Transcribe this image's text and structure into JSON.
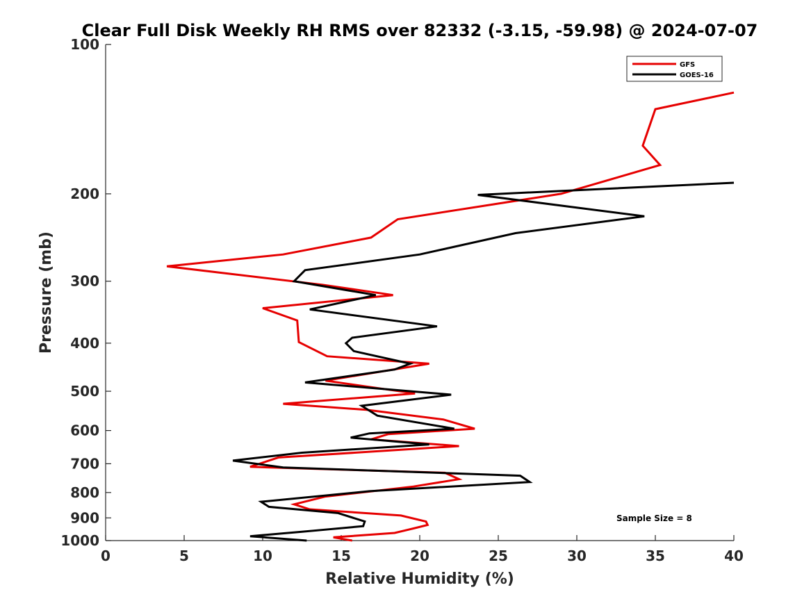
{
  "chart_data": {
    "type": "line",
    "title": "Clear Full Disk Weekly RH RMS over 82332 (-3.15, -59.98) @ 2024-07-07",
    "xlabel": "Relative Humidity (%)",
    "ylabel": "Pressure (mb)",
    "xlim": [
      0,
      40
    ],
    "ylim": [
      100,
      1000
    ],
    "yscale": "log",
    "y_reversed": true,
    "x_ticks": [
      "0",
      "5",
      "10",
      "15",
      "20",
      "25",
      "30",
      "35",
      "40"
    ],
    "y_ticks": [
      "100",
      "200",
      "300",
      "400",
      "500",
      "600",
      "700",
      "800",
      "900",
      "1000"
    ],
    "grid": false,
    "legend_position": "top-right",
    "annotation": "Sample Size = 8",
    "series": [
      {
        "name": "GFS",
        "color": "#e60000",
        "points": [
          [
            40.0,
            125
          ],
          [
            35.0,
            135
          ],
          [
            34.2,
            160
          ],
          [
            35.3,
            175
          ],
          [
            29.0,
            200
          ],
          [
            18.6,
            225
          ],
          [
            16.9,
            245
          ],
          [
            11.3,
            265
          ],
          [
            3.9,
            280
          ],
          [
            13.8,
            305
          ],
          [
            18.3,
            320
          ],
          [
            10.0,
            340
          ],
          [
            12.2,
            360
          ],
          [
            12.3,
            398
          ],
          [
            14.1,
            425
          ],
          [
            20.6,
            440
          ],
          [
            14.0,
            476
          ],
          [
            19.7,
            505
          ],
          [
            11.3,
            530
          ],
          [
            16.6,
            545
          ],
          [
            21.5,
            570
          ],
          [
            23.5,
            595
          ],
          [
            18.0,
            610
          ],
          [
            16.9,
            625
          ],
          [
            22.5,
            645
          ],
          [
            11.0,
            680
          ],
          [
            9.2,
            710
          ],
          [
            21.6,
            730
          ],
          [
            22.5,
            752
          ],
          [
            19.6,
            778
          ],
          [
            14.0,
            815
          ],
          [
            12.0,
            845
          ],
          [
            13.0,
            865
          ],
          [
            18.8,
            890
          ],
          [
            20.4,
            915
          ],
          [
            20.5,
            930
          ],
          [
            19.6,
            945
          ],
          [
            18.4,
            965
          ],
          [
            14.5,
            985
          ],
          [
            15.7,
            1000
          ]
        ]
      },
      {
        "name": "GOES-16",
        "color": "#000000",
        "points": [
          [
            40.0,
            190
          ],
          [
            23.7,
            201
          ],
          [
            34.3,
            222
          ],
          [
            26.1,
            240
          ],
          [
            20.0,
            265
          ],
          [
            12.7,
            285
          ],
          [
            12.0,
            300
          ],
          [
            17.2,
            320
          ],
          [
            13.0,
            342
          ],
          [
            21.1,
            370
          ],
          [
            15.7,
            390
          ],
          [
            15.3,
            400
          ],
          [
            15.8,
            415
          ],
          [
            19.4,
            440
          ],
          [
            18.4,
            452
          ],
          [
            12.7,
            480
          ],
          [
            22.0,
            508
          ],
          [
            16.3,
            535
          ],
          [
            17.3,
            560
          ],
          [
            22.2,
            595
          ],
          [
            16.8,
            608
          ],
          [
            15.6,
            620
          ],
          [
            20.6,
            640
          ],
          [
            12.5,
            665
          ],
          [
            8.1,
            690
          ],
          [
            11.3,
            712
          ],
          [
            26.4,
            740
          ],
          [
            27.0,
            762
          ],
          [
            16.8,
            795
          ],
          [
            9.9,
            835
          ],
          [
            10.4,
            855
          ],
          [
            14.8,
            880
          ],
          [
            16.5,
            915
          ],
          [
            16.4,
            935
          ],
          [
            12.5,
            960
          ],
          [
            9.2,
            980
          ],
          [
            12.8,
            1000
          ]
        ]
      }
    ]
  }
}
